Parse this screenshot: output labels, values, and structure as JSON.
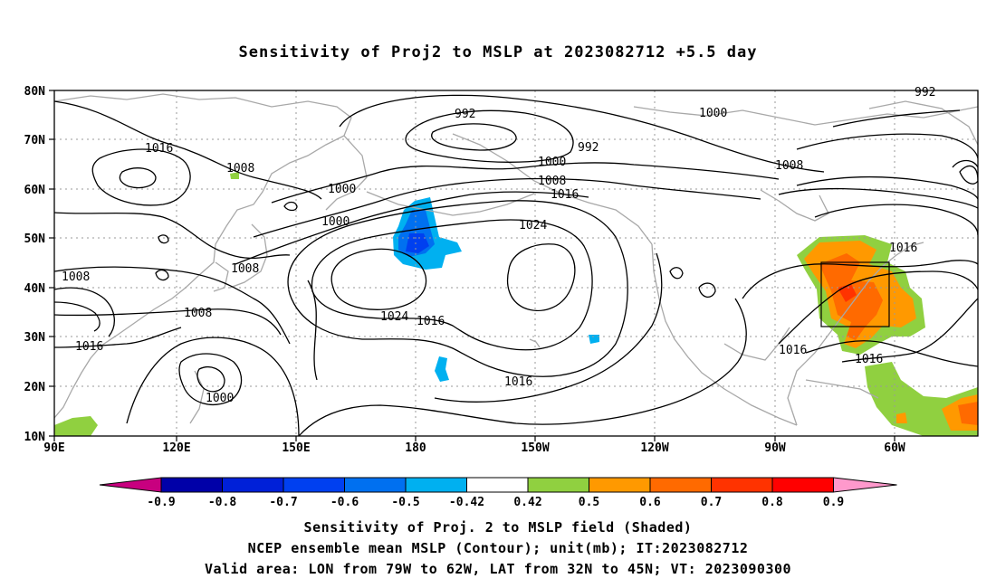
{
  "title": "Sensitivity of Proj2 to MSLP at 2023082712 +5.5 day",
  "lat_labels": [
    "80N",
    "70N",
    "60N",
    "50N",
    "40N",
    "30N",
    "20N",
    "10N"
  ],
  "lon_labels": [
    "90E",
    "120E",
    "150E",
    "180",
    "150W",
    "120W",
    "90W",
    "60W"
  ],
  "contour_labels": {
    "c1016_a": "1016",
    "c1008_a": "1008",
    "c1000_a": "1000",
    "c1000_b": "1000",
    "c992_a": "992",
    "c992_b": "992",
    "c1000_c": "1000",
    "c1008_b": "1008",
    "c1016_b": "1016",
    "c1024_a": "1024",
    "c1008_c": "1008",
    "c1008_d": "1008",
    "c1008_e": "1008",
    "c1016_c": "1016",
    "c1000_d": "1000",
    "c1024_b": "1024",
    "c1016_d": "1016",
    "c1016_e": "1016",
    "c1000_e": "1000",
    "c1008_f": "1008",
    "c1016_f": "1016",
    "c1016_g": "1016",
    "c1016_h": "1016",
    "c992_c": "992"
  },
  "colorbar": {
    "ticks": [
      "-0.9",
      "-0.8",
      "-0.7",
      "-0.6",
      "-0.5",
      "-0.42",
      "0.42",
      "0.5",
      "0.6",
      "0.7",
      "0.8",
      "0.9"
    ],
    "colors": [
      "#c8007f",
      "#0000a8",
      "#0020d8",
      "#0040f0",
      "#0070f0",
      "#00b0f0",
      "#ffffff",
      "#90d040",
      "#ff9900",
      "#ff6a00",
      "#ff3300",
      "#ff0000",
      "#ff99cc"
    ]
  },
  "footer": {
    "line1": "Sensitivity of Proj. 2 to MSLP field (Shaded)",
    "line2": "NCEP ensemble mean MSLP (Contour); unit(mb); IT:2023082712",
    "line3": "Valid area: LON from 79W to 62W, LAT from 32N to 45N; VT: 2023090300"
  }
}
